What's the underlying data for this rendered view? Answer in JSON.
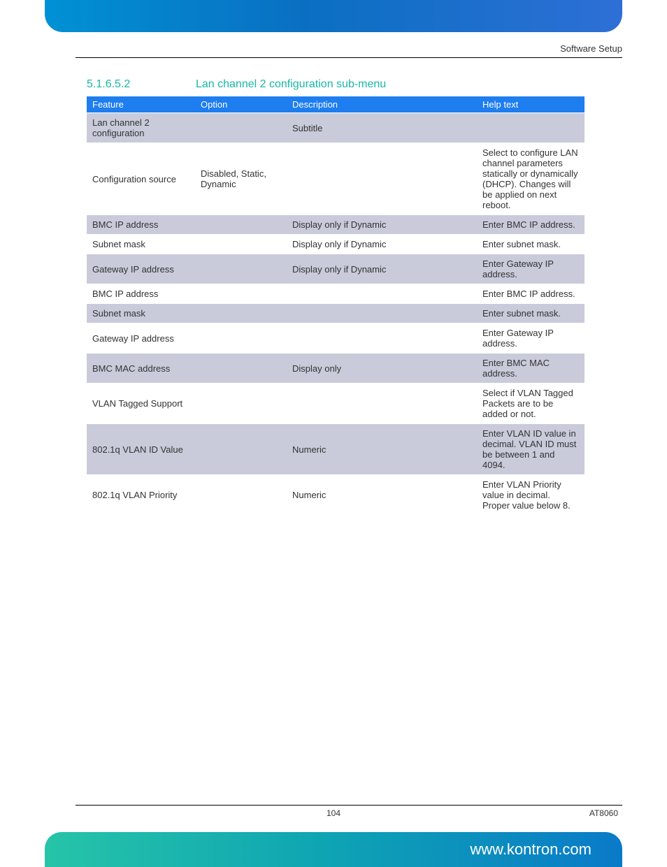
{
  "header": {
    "right": "Software Setup"
  },
  "section": {
    "number": "5.1.6.5.2",
    "title": "Lan channel 2 configuration sub-menu"
  },
  "table": {
    "columns": [
      "Feature",
      "Option",
      "Description",
      "Help text"
    ],
    "rows": [
      {
        "feature": "Lan channel 2 configuration",
        "option": "",
        "description": "Subtitle",
        "help": "",
        "shade": true
      },
      {
        "feature": "Configuration source",
        "option": "Disabled, Static, Dynamic",
        "description": "",
        "help": "Select to configure LAN channel parameters statically or dynamically (DHCP). Changes will be applied on next reboot.",
        "shade": false
      },
      {
        "feature": "BMC IP address",
        "option": "",
        "description": "Display only if Dynamic",
        "help": "Enter BMC IP address.",
        "shade": true
      },
      {
        "feature": "Subnet mask",
        "option": "",
        "description": "Display only if Dynamic",
        "help": "Enter subnet mask.",
        "shade": false
      },
      {
        "feature": "Gateway IP address",
        "option": "",
        "description": "Display only if Dynamic",
        "help": "Enter Gateway IP address.",
        "shade": true
      },
      {
        "feature": "BMC IP address",
        "option": "",
        "description": "",
        "help": "Enter BMC IP address.",
        "shade": false
      },
      {
        "feature": "Subnet mask",
        "option": "",
        "description": "",
        "help": "Enter subnet mask.",
        "shade": true
      },
      {
        "feature": "Gateway IP address",
        "option": "",
        "description": "",
        "help": "Enter Gateway IP address.",
        "shade": false
      },
      {
        "feature": "BMC MAC address",
        "option": "",
        "description": "Display only",
        "help": "Enter BMC MAC address.",
        "shade": true
      },
      {
        "feature": "VLAN Tagged Support",
        "option": "",
        "description": "",
        "help": "Select if VLAN Tagged Packets are to be added or not.",
        "shade": false
      },
      {
        "feature": "802.1q VLAN ID Value",
        "option": "",
        "description": "Numeric",
        "help": "Enter VLAN ID value in decimal. VLAN ID must be between 1 and 4094.",
        "shade": true
      },
      {
        "feature": "802.1q VLAN Priority",
        "option": "",
        "description": "Numeric",
        "help": "Enter VLAN Priority value in decimal. Proper value below 8.",
        "shade": false
      }
    ]
  },
  "footer": {
    "page": "104",
    "doc": "AT8060",
    "url": "www.kontron.com"
  },
  "colors": {
    "accent_teal": "#18b8a6",
    "header_blue": "#1e7def",
    "row_shade": "#c9cbda",
    "top_grad_a": "#0091d4",
    "top_grad_b": "#2e6fd6",
    "bot_grad_a": "#26c4a8",
    "bot_grad_b": "#0a7ac8"
  }
}
